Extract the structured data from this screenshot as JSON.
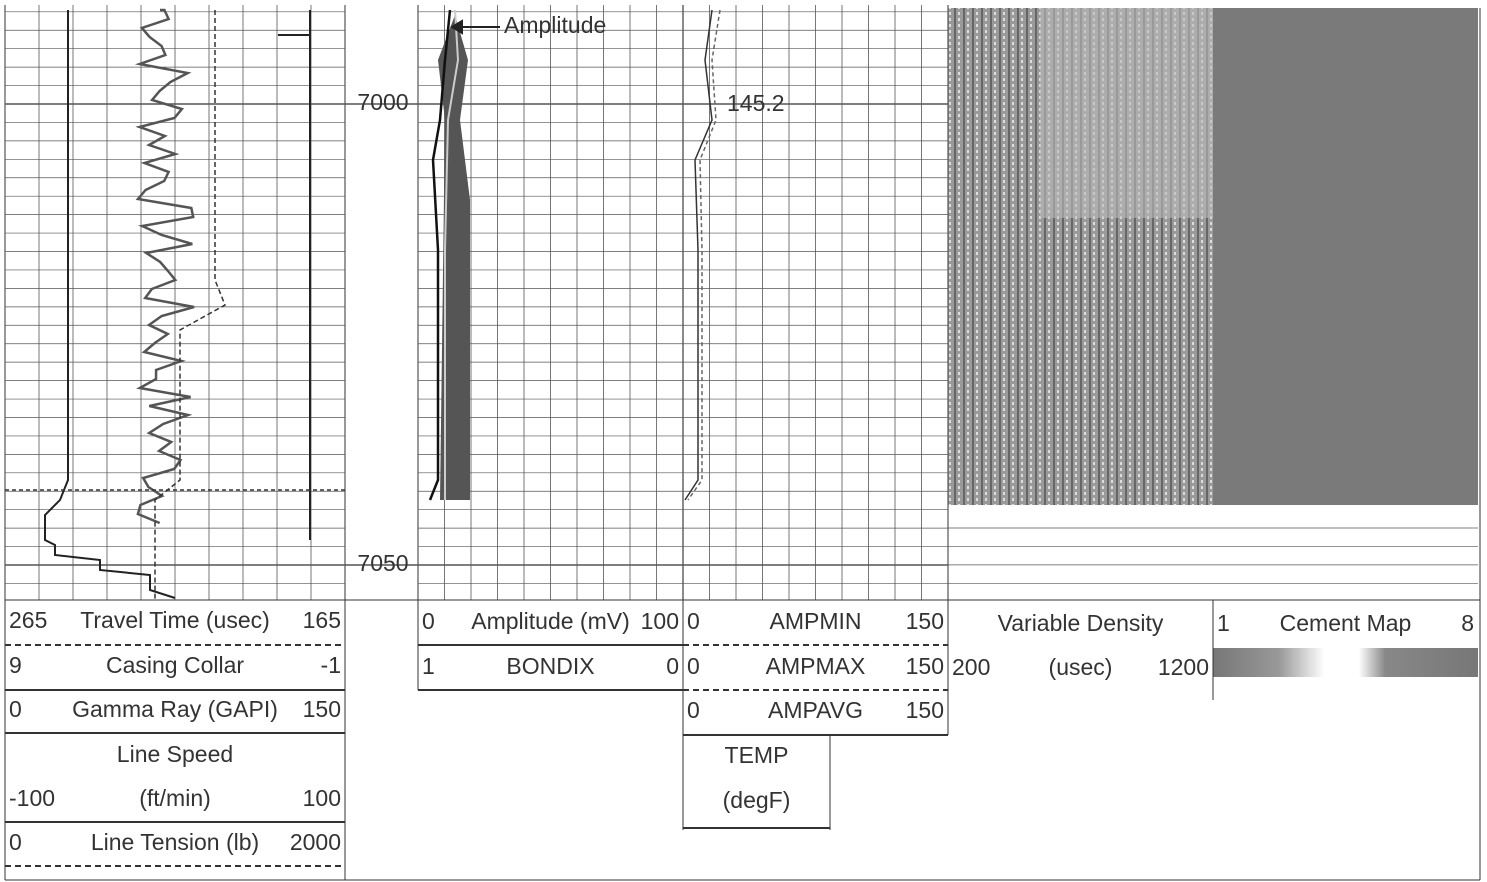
{
  "depth_labels": [
    7000,
    7050
  ],
  "annotations": {
    "amplitude": "Amplitude",
    "temp_value": "145.2"
  },
  "tracks": [
    {
      "rows": [
        {
          "left": "265",
          "center": "Travel Time (usec)",
          "right": "165"
        },
        {
          "left": "9",
          "center": "Casing Collar",
          "right": "-1"
        },
        {
          "left": "0",
          "center": "Gamma Ray (GAPI)",
          "right": "150"
        },
        {
          "center": "Line Speed"
        },
        {
          "left": "-100",
          "center": "(ft/min)",
          "right": "100"
        },
        {
          "left": "0",
          "center": "Line Tension (lb)",
          "right": "2000"
        }
      ]
    },
    {
      "rows": [
        {
          "left": "0",
          "center": "Amplitude (mV)",
          "right": "100"
        },
        {
          "left": "1",
          "center": "BONDIX",
          "right": "0"
        }
      ]
    },
    {
      "rows": [
        {
          "left": "0",
          "center": "AMPMIN",
          "right": "150"
        },
        {
          "left": "0",
          "center": "AMPMAX",
          "right": "150"
        },
        {
          "left": "0",
          "center": "AMPAVG",
          "right": "150"
        },
        {
          "center": "TEMP"
        },
        {
          "center": "(degF)"
        }
      ]
    },
    {
      "rows": [
        {
          "center": "Variable Density"
        },
        {
          "left": "200",
          "center": "(usec)",
          "right": "1200"
        }
      ]
    },
    {
      "rows": [
        {
          "left": "1",
          "center": "Cement Map",
          "right": "8"
        }
      ]
    }
  ]
}
